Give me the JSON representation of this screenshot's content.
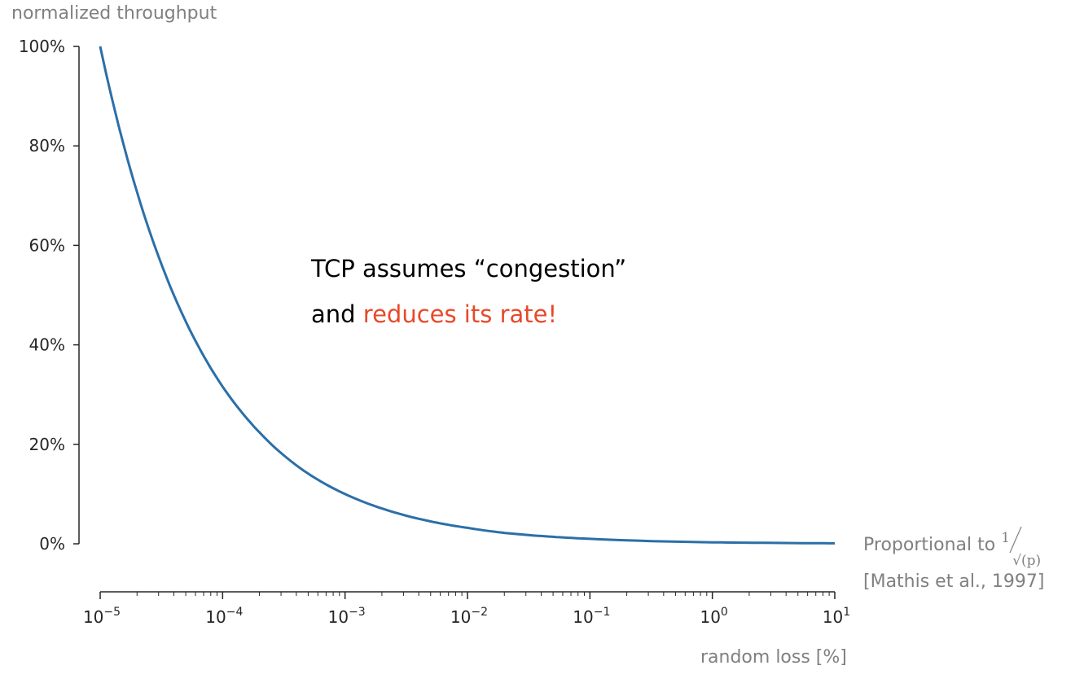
{
  "chart_data": {
    "type": "line",
    "xscale": "log",
    "xlim": [
      1e-05,
      10
    ],
    "ylim": [
      0,
      100
    ],
    "ylabel": "normalized throughput",
    "xlabel": "random loss [%]",
    "y_ticks": [
      0,
      20,
      40,
      60,
      80,
      100
    ],
    "y_tick_labels": [
      "0%",
      "20%",
      "40%",
      "60%",
      "80%",
      "100%"
    ],
    "x_ticks": [
      1e-05,
      0.0001,
      0.001,
      0.01,
      0.1,
      1,
      10
    ],
    "x_tick_labels": [
      {
        "base": "10",
        "exp": "−5"
      },
      {
        "base": "10",
        "exp": "−4"
      },
      {
        "base": "10",
        "exp": "−3"
      },
      {
        "base": "10",
        "exp": "−2"
      },
      {
        "base": "10",
        "exp": "−1"
      },
      {
        "base": "10",
        "exp": "0"
      },
      {
        "base": "10",
        "exp": "1"
      }
    ],
    "grid": false,
    "series": [
      {
        "color": "#2b6fa8",
        "x": [
          1e-05,
          2e-05,
          5e-05,
          0.0001,
          0.0002,
          0.0005,
          0.001,
          0.002,
          0.005,
          0.01,
          0.02,
          0.05,
          0.1,
          1,
          10
        ],
        "y": [
          100,
          70.7,
          44.7,
          31.6,
          22.4,
          14.1,
          10.0,
          7.1,
          4.5,
          3.2,
          2.2,
          1.4,
          1.0,
          0.3,
          0.1
        ]
      }
    ],
    "annotation": {
      "line1": "TCP assumes “congestion”",
      "line2_prefix": "and ",
      "line2_highlight": "reduces its rate!"
    },
    "note": {
      "prefix": "Proportional to",
      "formula_numerator": "1",
      "formula_denominator": "√(p)",
      "citation": "[Mathis et al., 1997]"
    },
    "colors": {
      "line": "#2b6fa8",
      "axis_labels": "#808080",
      "highlight": "#e8492a"
    }
  }
}
